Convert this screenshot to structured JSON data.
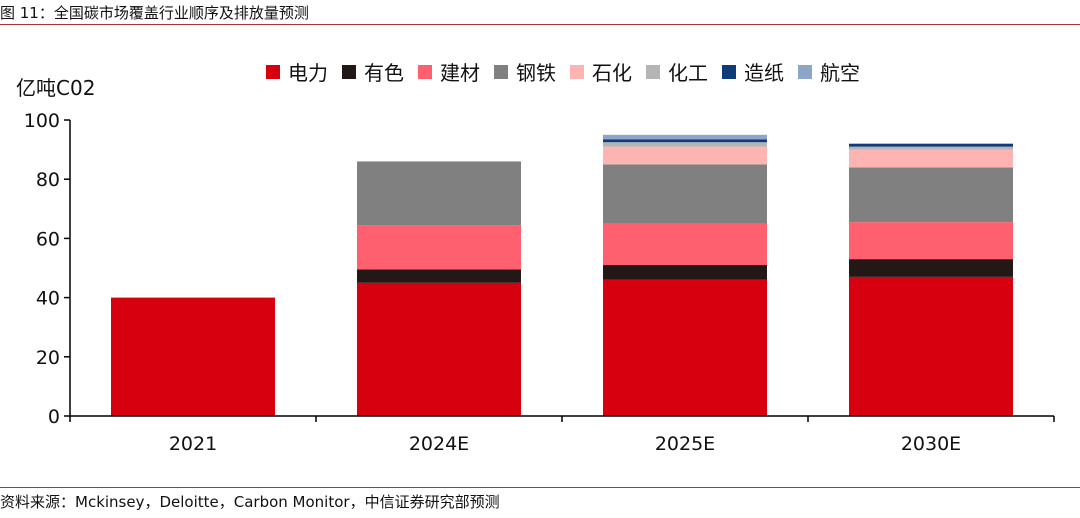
{
  "figure_title": "图 11：全国碳市场覆盖行业顺序及排放量预测",
  "source_note": "资料来源：Mckinsey，Deloitte，Carbon Monitor，中信证券研究部预测",
  "chart_data": {
    "type": "bar",
    "stacked": true,
    "title": "",
    "xlabel": "",
    "ylabel": "亿吨C02",
    "ylim": [
      0,
      100
    ],
    "yticks": [
      0,
      20,
      40,
      60,
      80,
      100
    ],
    "grid": false,
    "legend_position": "top",
    "categories": [
      "2021",
      "2024E",
      "2025E",
      "2030E"
    ],
    "series": [
      {
        "name": "电力",
        "color": "#d7000f",
        "values": [
          40,
          45,
          46,
          47
        ]
      },
      {
        "name": "有色",
        "color": "#231815",
        "values": [
          0,
          4.5,
          5,
          6
        ]
      },
      {
        "name": "建材",
        "color": "#ff6070",
        "values": [
          0,
          15,
          14,
          12.5
        ]
      },
      {
        "name": "钢铁",
        "color": "#808080",
        "values": [
          0,
          21.5,
          20,
          18.5
        ]
      },
      {
        "name": "石化",
        "color": "#ffb4b4",
        "values": [
          0,
          0,
          6,
          6
        ]
      },
      {
        "name": "化工",
        "color": "#b4b4b4",
        "values": [
          0,
          0,
          1.5,
          1
        ]
      },
      {
        "name": "造纸",
        "color": "#0f3c78",
        "values": [
          0,
          0,
          1,
          1
        ]
      },
      {
        "name": "航空",
        "color": "#8ca5c8",
        "values": [
          0,
          0,
          1.5,
          0
        ]
      }
    ]
  }
}
